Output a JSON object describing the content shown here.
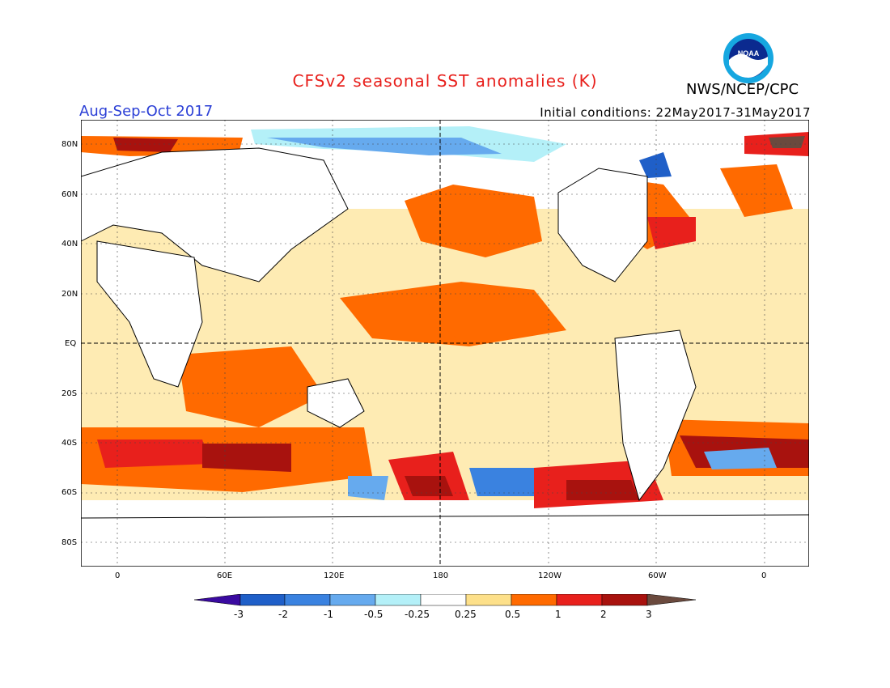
{
  "title": "CFSv2 seasonal SST anomalies (K)",
  "period": "Aug-Sep-Oct 2017",
  "initial_conditions": "Initial conditions: 22May2017-31May2017",
  "agency": "NWS/NCEP/CPC",
  "logo_text": "NOAA",
  "lat_labels": [
    "80N",
    "60N",
    "40N",
    "20N",
    "EQ",
    "20S",
    "40S",
    "60S",
    "80S"
  ],
  "lon_labels": [
    "0",
    "60E",
    "120E",
    "180",
    "120W",
    "60W",
    "0"
  ],
  "colorbar": {
    "labels": [
      "-3",
      "-2",
      "-1",
      "-0.5",
      "-0.25",
      "0.25",
      "0.5",
      "1",
      "2",
      "3"
    ],
    "colors": [
      "#3a0aa0",
      "#1f5fc8",
      "#3a82e0",
      "#66aaee",
      "#b4f0f8",
      "#ffffff",
      "#fde08a",
      "#ff6a00",
      "#e8201c",
      "#a8120e",
      "#6b4a3e"
    ]
  }
}
